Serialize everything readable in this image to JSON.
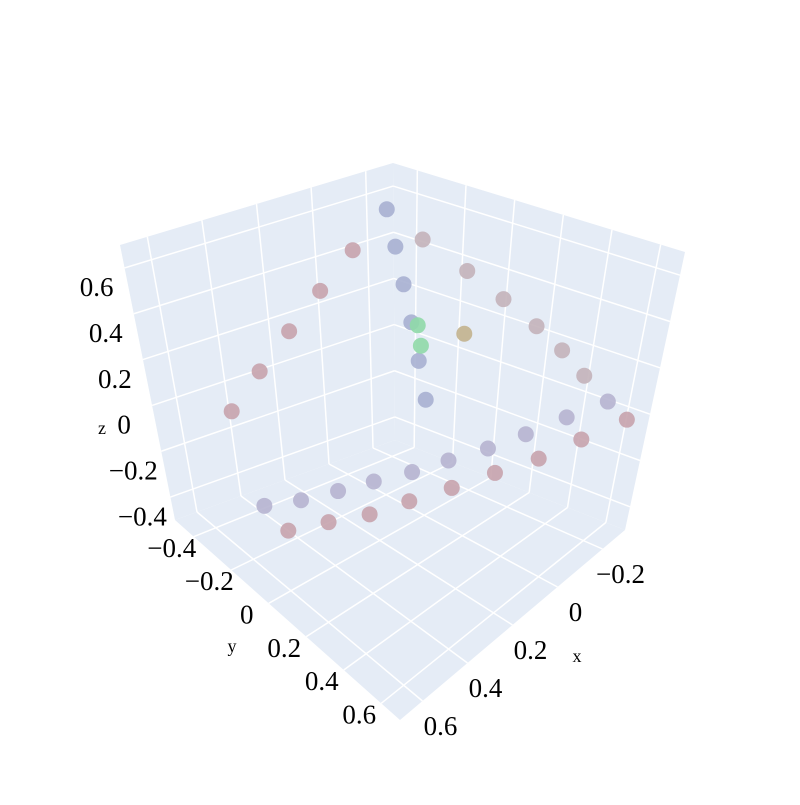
{
  "chart_data": {
    "type": "scatter3d",
    "xlim": [
      -0.3,
      0.7
    ],
    "ylim": [
      -0.5,
      0.7
    ],
    "zlim": [
      -0.5,
      0.7
    ],
    "xticks": [
      {
        "value": -0.2,
        "label": "−0.2"
      },
      0,
      0.2,
      0.4,
      0.6
    ],
    "yticks": [
      {
        "value": -0.4,
        "label": "−0.4"
      },
      {
        "value": -0.2,
        "label": "−0.2"
      },
      0,
      0.2,
      0.4,
      0.6
    ],
    "zticks": [
      {
        "value": -0.4,
        "label": "−0.4"
      },
      {
        "value": -0.2,
        "label": "−0.2"
      },
      0,
      0.2,
      0.4,
      0.6
    ],
    "xlabel": "x",
    "ylabel": "y",
    "zlabel": "z",
    "grid": true,
    "series": [
      {
        "color": "#b6b4d0",
        "x": [
          0.6,
          0.51,
          0.42,
          0.33,
          0.24,
          0.16,
          0.07,
          -0.02,
          -0.11,
          -0.2
        ],
        "y": [
          -0.1,
          -0.02,
          0.06,
          0.13,
          0.21,
          0.29,
          0.37,
          0.44,
          0.52,
          0.6
        ],
        "z": [
          -0.2,
          -0.17,
          -0.13,
          -0.1,
          -0.07,
          -0.03,
          0,
          0.03,
          0.07,
          0.1
        ]
      },
      {
        "color": "#a7b0d2",
        "x": [
          -0.1,
          -0.07,
          -0.04,
          -0.01,
          0.02,
          0.05
        ],
        "y": [
          -0.3,
          -0.23,
          -0.16,
          -0.09,
          -0.02,
          0.05
        ],
        "z": [
          0.65,
          0.53,
          0.41,
          0.29,
          0.17,
          0.05
        ]
      },
      {
        "color": "#c6a3ad",
        "x": [
          0.55,
          0.45,
          0.35,
          0.25,
          0.15,
          0.05,
          -0.05,
          -0.15,
          -0.25,
          0.02,
          0.14,
          0.26,
          0.38,
          0.5
        ],
        "y": [
          -0.05,
          0.04,
          0.13,
          0.21,
          0.3,
          0.39,
          0.48,
          0.56,
          0.65,
          -0.31,
          -0.32,
          -0.33,
          -0.34,
          -0.35
        ],
        "z": [
          -0.3,
          -0.26,
          -0.23,
          -0.19,
          -0.15,
          -0.11,
          -0.08,
          -0.04,
          0,
          0.52,
          0.39,
          0.26,
          0.13,
          0
        ]
      },
      {
        "color": "#c3b3ba",
        "x": [
          -0.11,
          -0.13,
          -0.14,
          -0.15,
          -0.17,
          -0.18
        ],
        "y": [
          -0.16,
          0.01,
          0.16,
          0.3,
          0.4,
          0.5
        ],
        "z": [
          0.57,
          0.49,
          0.42,
          0.35,
          0.27,
          0.19
        ]
      },
      {
        "color": "#8fd9a8",
        "x": [
          0,
          0.03
        ],
        "y": [
          -0.05,
          0
        ],
        "z": [
          0.3,
          0.25
        ]
      },
      {
        "color": "#c2b28e",
        "x": [
          -0.05
        ],
        "y": [
          0.1
        ],
        "z": [
          0.3
        ]
      }
    ]
  }
}
